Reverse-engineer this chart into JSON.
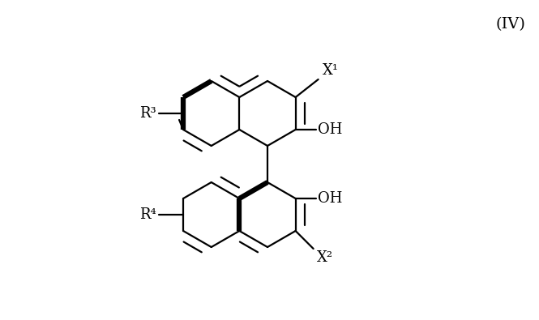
{
  "bg_color": "#ffffff",
  "bond_color": "#000000",
  "thick_lw": 4.5,
  "thin_lw": 1.6,
  "font_size": 13,
  "title_font_size": 14,
  "title_text": "(IV)",
  "label_X1": "X¹",
  "label_X2": "X²",
  "label_R3": "R³",
  "label_R4": "R⁴",
  "label_OH": "OH"
}
